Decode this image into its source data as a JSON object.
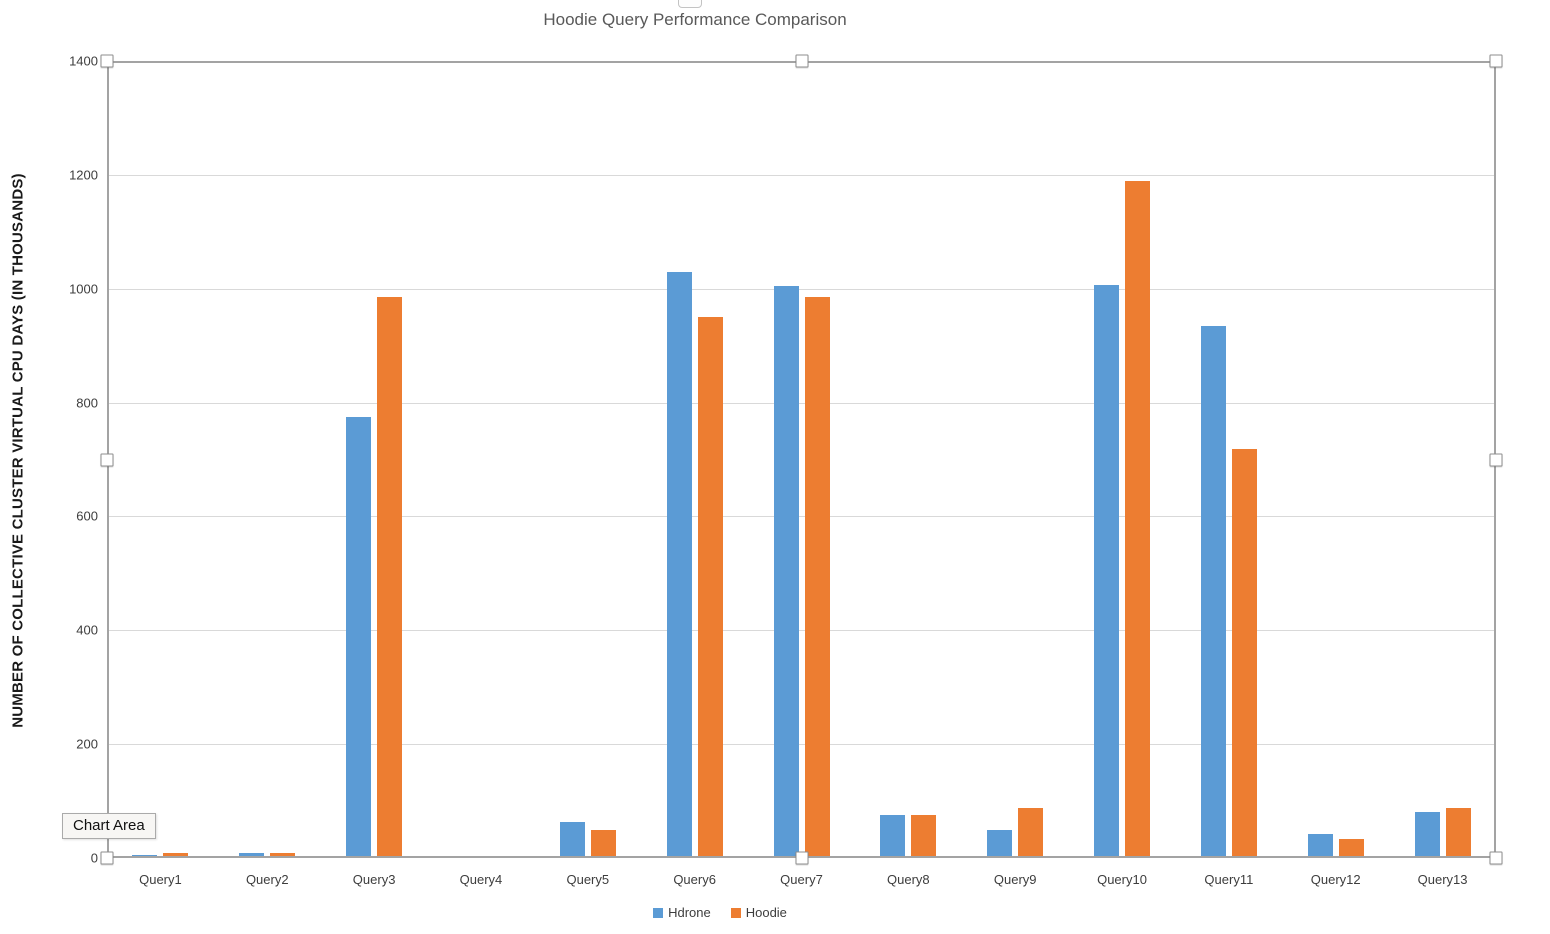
{
  "window": {
    "tooltip_label": "Chart Area"
  },
  "chart_data": {
    "type": "bar",
    "title": "Hoodie Query Performance Comparison",
    "xlabel": "",
    "ylabel": "NUMBER OF COLLECTIVE CLUSTER VIRTUAL CPU DAYS (IN THOUSANDS)",
    "categories": [
      "Query1",
      "Query2",
      "Query3",
      "Query4",
      "Query5",
      "Query6",
      "Query7",
      "Query8",
      "Query9",
      "Query10",
      "Query11",
      "Query12",
      "Query13"
    ],
    "series": [
      {
        "name": "Hdrone",
        "color": "#5B9BD5",
        "values": [
          5,
          9,
          775,
          4,
          63,
          1030,
          1005,
          76,
          50,
          1007,
          935,
          42,
          80
        ]
      },
      {
        "name": "Hoodie",
        "color": "#ED7D31",
        "values": [
          8,
          8,
          985,
          4,
          50,
          950,
          985,
          76,
          88,
          1190,
          718,
          34,
          88
        ]
      }
    ],
    "ylim": [
      0,
      1400
    ],
    "ytick_step": 200,
    "yticks": [
      0,
      200,
      400,
      600,
      800,
      1000,
      1200,
      1400
    ],
    "grid": true,
    "legend_position": "bottom",
    "selection": "chart-area-selected"
  },
  "colors": {
    "series1": "#5B9BD5",
    "series2": "#ED7D31",
    "gridline": "#d9d9d9",
    "selection_border": "#a3a3a3",
    "title_text": "#595959",
    "axis_text": "#3d3d3d"
  }
}
